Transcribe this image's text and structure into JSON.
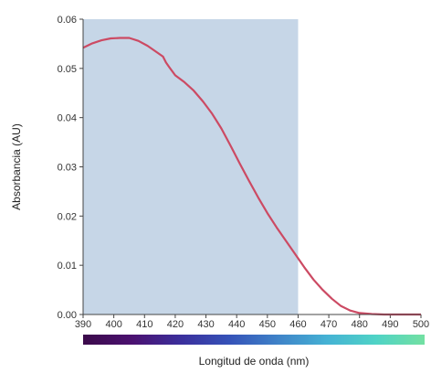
{
  "chart_data": {
    "type": "line",
    "title": "",
    "xlabel": "Longitud de onda (nm)",
    "ylabel": "Absorbancia (AU)",
    "xlim": [
      390,
      500
    ],
    "ylim": [
      0,
      0.06
    ],
    "x_ticks": [
      "390",
      "400",
      "410",
      "420",
      "430",
      "440",
      "450",
      "460",
      "470",
      "480",
      "490",
      "500"
    ],
    "y_ticks": [
      "0.00",
      "0.01",
      "0.02",
      "0.03",
      "0.04",
      "0.05",
      "0.06"
    ],
    "highlight_region": [
      390,
      460
    ],
    "grid": false,
    "legend": "none",
    "colors": {
      "line": "#cc4a63",
      "highlight": "#c6d6e7",
      "spectrum": [
        "#3b0a4a",
        "#4b1170",
        "#3b2f9c",
        "#3552b8",
        "#3f83c8",
        "#45b2d4",
        "#4fd3c6",
        "#73e0a2"
      ]
    },
    "series": [
      {
        "x": [
          390,
          393,
          396,
          399,
          402,
          405,
          408,
          411,
          414,
          416,
          417,
          418,
          420,
          423,
          426,
          429,
          432,
          435,
          438,
          441,
          444,
          447,
          450,
          453,
          456,
          459,
          462,
          465,
          468,
          471,
          474,
          477,
          480,
          484,
          488,
          492,
          496,
          500
        ],
        "y": [
          0.0542,
          0.0551,
          0.0557,
          0.0561,
          0.0562,
          0.0562,
          0.0556,
          0.0546,
          0.0533,
          0.0524,
          0.0512,
          0.0503,
          0.0486,
          0.0472,
          0.0455,
          0.0433,
          0.0408,
          0.0378,
          0.0343,
          0.0307,
          0.0272,
          0.0238,
          0.0206,
          0.0177,
          0.015,
          0.0123,
          0.0096,
          0.0071,
          0.005,
          0.0032,
          0.0017,
          0.0008,
          0.0003,
          0.0001,
          0,
          0,
          0,
          0
        ]
      }
    ]
  }
}
